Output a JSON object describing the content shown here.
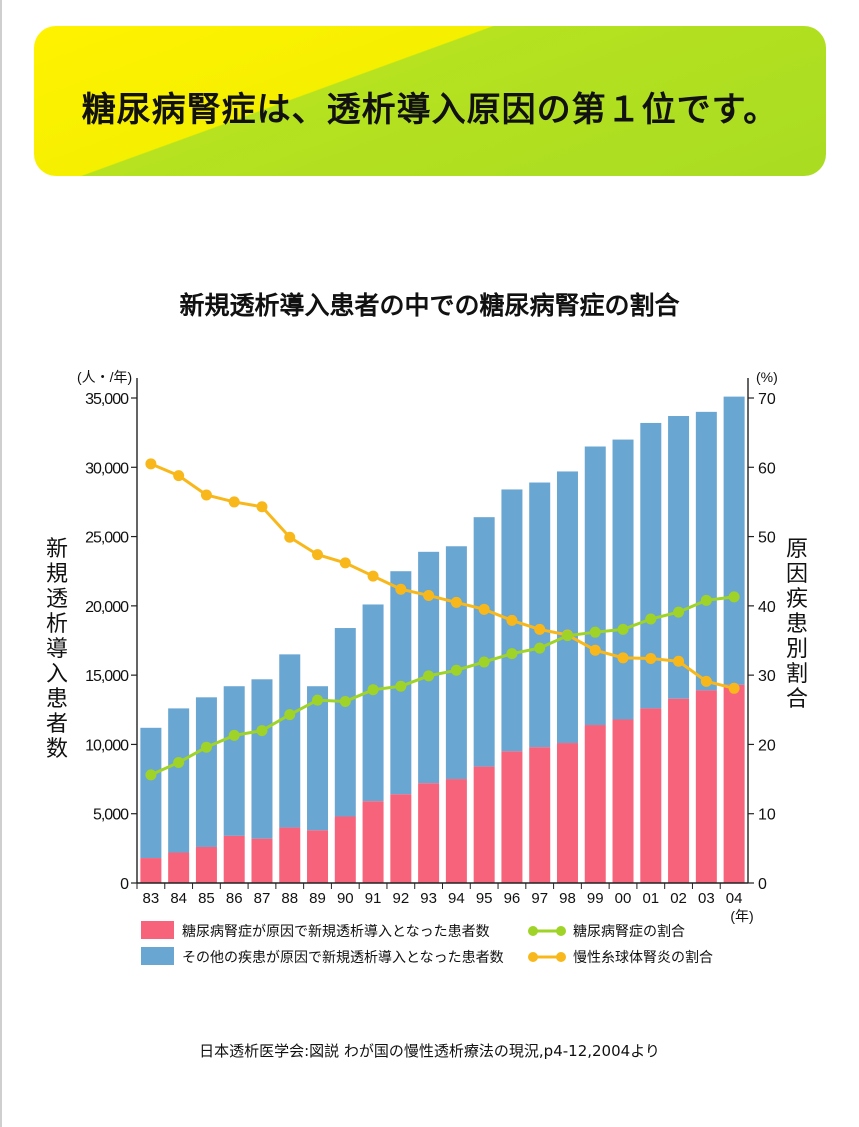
{
  "banner": {
    "text": "糖尿病腎症は、透析導入原因の第１位です。"
  },
  "source": "日本透析医学会:図説 わが国の慢性透析療法の現況,p4-12,2004より",
  "colors": {
    "diabetic_bar": "#f7637a",
    "other_bar": "#6aa6d2",
    "diabetic_line": "#9fd327",
    "glomerulo_line": "#f8b81c"
  },
  "chart_data": {
    "type": "bar",
    "title": "新規透析導入患者の中での糖尿病腎症の割合",
    "categories": [
      "83",
      "84",
      "85",
      "86",
      "87",
      "88",
      "89",
      "90",
      "91",
      "92",
      "93",
      "94",
      "95",
      "96",
      "97",
      "98",
      "99",
      "00",
      "01",
      "02",
      "03",
      "04"
    ],
    "x_unit": "(年)",
    "y_left": {
      "label": "新規透析導入患者数",
      "unit": "(人・/年)",
      "ylim": [
        0,
        35000
      ],
      "ticks": [
        "0",
        "5,000",
        "10,000",
        "15,000",
        "20,000",
        "25,000",
        "30,000",
        "35,000"
      ]
    },
    "y_right": {
      "label": "原因疾患別割合",
      "unit": "(%)",
      "ylim": [
        0,
        70
      ],
      "ticks": [
        "0",
        "10",
        "20",
        "30",
        "40",
        "50",
        "60",
        "70"
      ]
    },
    "series": [
      {
        "name": "糖尿病腎症が原因で新規透析導入となった患者数",
        "kind": "bar-stack-bottom",
        "axis": "left",
        "values": [
          1800,
          2200,
          2600,
          3400,
          3200,
          4000,
          3800,
          4800,
          5900,
          6400,
          7200,
          7500,
          8400,
          9500,
          9800,
          10100,
          11400,
          11800,
          12600,
          13300,
          13900,
          14300
        ]
      },
      {
        "name": "その他の疾患が原因で新規透析導入となった患者数",
        "kind": "bar-stack-top",
        "axis": "left",
        "values": [
          9400,
          10400,
          10800,
          10800,
          11500,
          12500,
          10400,
          13600,
          14200,
          16100,
          16700,
          16800,
          18000,
          18900,
          19100,
          19600,
          20100,
          20200,
          20600,
          20400,
          20100,
          20800
        ]
      },
      {
        "name": "糖尿病腎症の割合",
        "kind": "line",
        "axis": "right",
        "values": [
          15.6,
          17.4,
          19.6,
          21.3,
          22.0,
          24.3,
          26.4,
          26.2,
          27.9,
          28.4,
          29.9,
          30.7,
          31.9,
          33.1,
          33.9,
          35.7,
          36.2,
          36.6,
          38.1,
          39.1,
          40.8,
          41.3
        ]
      },
      {
        "name": "慢性糸球体腎炎の割合",
        "kind": "line",
        "axis": "right",
        "values": [
          60.5,
          58.8,
          56.0,
          55.0,
          54.3,
          49.9,
          47.4,
          46.2,
          44.3,
          42.4,
          41.5,
          40.5,
          39.5,
          37.9,
          36.6,
          35.8,
          33.6,
          32.5,
          32.4,
          32.0,
          29.1,
          28.1
        ]
      }
    ],
    "legend_position": "bottom",
    "grid": false
  }
}
